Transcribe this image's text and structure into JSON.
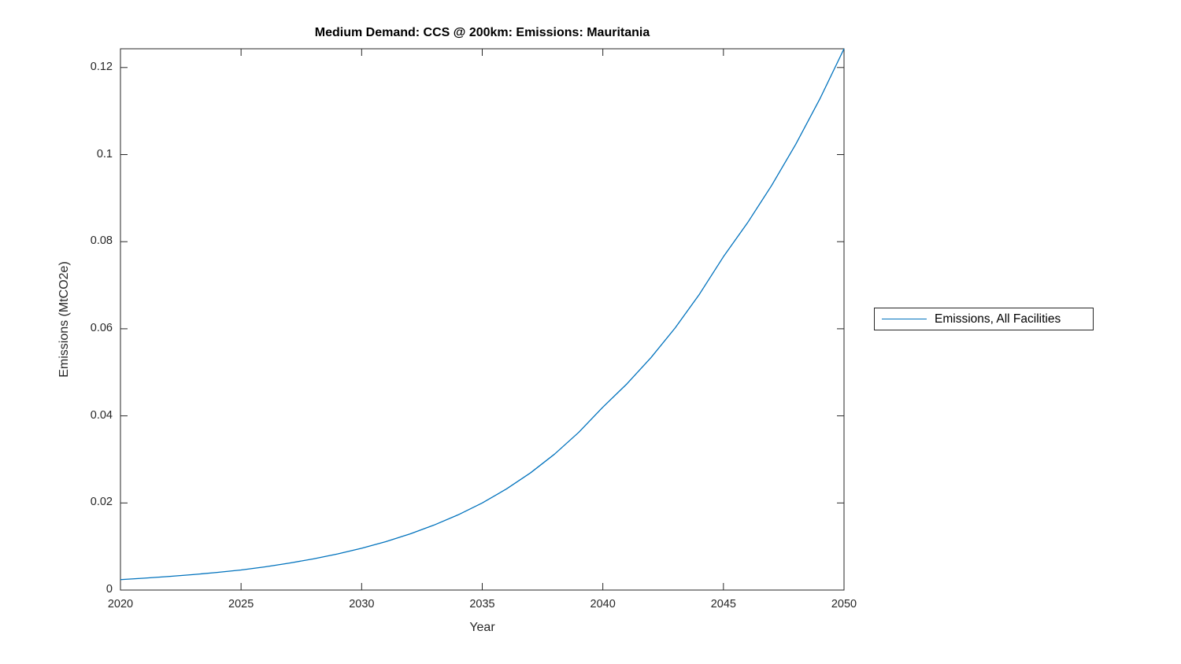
{
  "chart_data": {
    "type": "line",
    "title": "Medium Demand: CCS @ 200km: Emissions: Mauritania",
    "xlabel": "Year",
    "ylabel": "Emissions (MtCO2e)",
    "xlim": [
      2020,
      2050
    ],
    "ylim": [
      0,
      0.1243
    ],
    "xticks": [
      2020,
      2025,
      2030,
      2035,
      2040,
      2045,
      2050
    ],
    "xtick_labels": [
      "2020",
      "2025",
      "2030",
      "2035",
      "2040",
      "2045",
      "2050"
    ],
    "yticks": [
      0,
      0.02,
      0.04,
      0.06,
      0.08,
      0.1,
      0.12
    ],
    "ytick_labels": [
      "0",
      "0.02",
      "0.04",
      "0.06",
      "0.08",
      "0.1",
      "0.12"
    ],
    "grid": false,
    "box": true,
    "tick_direction": "in",
    "legend_position": "outside-right",
    "axis_color": "#262626",
    "series": [
      {
        "name": "Emissions, All Facilities",
        "color": "#0072BD",
        "x": [
          2020,
          2021,
          2022,
          2023,
          2024,
          2025,
          2026,
          2027,
          2028,
          2029,
          2030,
          2031,
          2032,
          2033,
          2034,
          2035,
          2036,
          2037,
          2038,
          2039,
          2040,
          2041,
          2042,
          2043,
          2044,
          2045,
          2046,
          2047,
          2048,
          2049,
          2050
        ],
        "y": [
          0.0024,
          0.00273,
          0.00311,
          0.00354,
          0.00404,
          0.0046,
          0.00533,
          0.00618,
          0.00716,
          0.00829,
          0.0096,
          0.01112,
          0.01288,
          0.01492,
          0.01727,
          0.02,
          0.0232,
          0.02691,
          0.03122,
          0.03621,
          0.042,
          0.04736,
          0.0534,
          0.06021,
          0.06789,
          0.07655,
          0.08434,
          0.09292,
          0.10238,
          0.11281,
          0.1243
        ]
      }
    ]
  },
  "legend": {
    "entries": [
      {
        "label": "Emissions, All Facilities",
        "color": "#0072BD"
      }
    ]
  }
}
